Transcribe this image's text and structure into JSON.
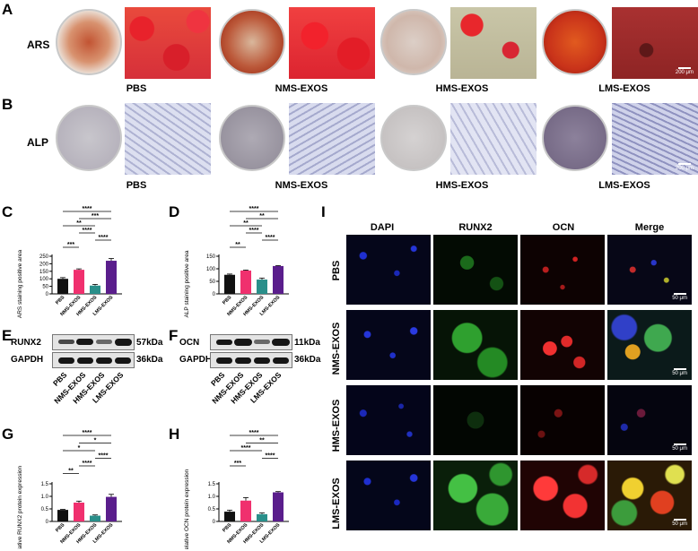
{
  "panels": {
    "A": "A",
    "B": "B",
    "C": "C",
    "D": "D",
    "E": "E",
    "F": "F",
    "G": "G",
    "H": "H",
    "I": "I"
  },
  "groups": [
    "PBS",
    "NMS-EXOS",
    "HMS-EXOS",
    "LMS-EXOS"
  ],
  "stain_rows": {
    "ars": "ARS",
    "alp": "ALP"
  },
  "scale_bar": "200 μm",
  "colors": {
    "PBS": "#111111",
    "NMS-EXOS": "#f0306e",
    "HMS-EXOS": "#2a8f8a",
    "LMS-EXOS": "#5a1e8c"
  },
  "western": {
    "runx2": {
      "target": "RUNX2",
      "target_kda": "57kDa",
      "control": "GAPDH",
      "control_kda": "36kDa"
    },
    "ocn": {
      "target": "OCN",
      "target_kda": "11kDa",
      "control": "GAPDH",
      "control_kda": "36kDa"
    }
  },
  "if_panel": {
    "columns": [
      "DAPI",
      "RUNX2",
      "OCN",
      "Merge"
    ],
    "rows": [
      "PBS",
      "NMS-EXOS",
      "HMS-EXOS",
      "LMS-EXOS"
    ],
    "scale": "50 μm"
  },
  "chart_data": [
    {
      "panel": "C",
      "type": "bar",
      "categories": [
        "PBS",
        "NMS-EXOS",
        "HMS-EXOS",
        "LMS-EXOS"
      ],
      "values": [
        100,
        160,
        55,
        220
      ],
      "errors": [
        8,
        6,
        8,
        15
      ],
      "ylabel": "ARS staining positive area",
      "ylim": [
        0,
        250
      ],
      "yticks": [
        0,
        50,
        100,
        150,
        200,
        250
      ],
      "significance": [
        {
          "from": 0,
          "to": 3,
          "label": "****"
        },
        {
          "from": 1,
          "to": 3,
          "label": "***"
        },
        {
          "from": 0,
          "to": 2,
          "label": "**"
        },
        {
          "from": 1,
          "to": 2,
          "label": "****"
        },
        {
          "from": 2,
          "to": 3,
          "label": "****"
        },
        {
          "from": 0,
          "to": 1,
          "label": "***"
        }
      ]
    },
    {
      "panel": "D",
      "type": "bar",
      "categories": [
        "PBS",
        "NMS-EXOS",
        "HMS-EXOS",
        "LMS-EXOS"
      ],
      "values": [
        76,
        93,
        57,
        111
      ],
      "errors": [
        3,
        2,
        6,
        2
      ],
      "ylabel": "ALP staining positive area",
      "ylim": [
        0,
        150
      ],
      "yticks": [
        0,
        50,
        100,
        150
      ],
      "significance": [
        {
          "from": 0,
          "to": 3,
          "label": "****"
        },
        {
          "from": 1,
          "to": 3,
          "label": "**"
        },
        {
          "from": 0,
          "to": 2,
          "label": "**"
        },
        {
          "from": 1,
          "to": 2,
          "label": "****"
        },
        {
          "from": 2,
          "to": 3,
          "label": "****"
        },
        {
          "from": 0,
          "to": 1,
          "label": "**"
        }
      ]
    },
    {
      "panel": "G",
      "type": "bar",
      "categories": [
        "PBS",
        "NMS-EXOS",
        "HMS-EXOS",
        "LMS-EXOS"
      ],
      "values": [
        0.46,
        0.75,
        0.23,
        0.98
      ],
      "errors": [
        0.02,
        0.06,
        0.03,
        0.1
      ],
      "ylabel": "Relative RUNX2 protein expression",
      "ylim": [
        0,
        1.5
      ],
      "yticks": [
        0,
        0.5,
        1.0,
        1.5
      ],
      "significance": [
        {
          "from": 0,
          "to": 3,
          "label": "****"
        },
        {
          "from": 1,
          "to": 3,
          "label": "*"
        },
        {
          "from": 0,
          "to": 2,
          "label": "*"
        },
        {
          "from": 2,
          "to": 3,
          "label": "****"
        },
        {
          "from": 1,
          "to": 2,
          "label": "****"
        },
        {
          "from": 0,
          "to": 1,
          "label": "**"
        }
      ]
    },
    {
      "panel": "H",
      "type": "bar",
      "categories": [
        "PBS",
        "NMS-EXOS",
        "HMS-EXOS",
        "LMS-EXOS"
      ],
      "values": [
        0.39,
        0.83,
        0.29,
        1.16
      ],
      "errors": [
        0.06,
        0.12,
        0.05,
        0.03
      ],
      "ylabel": "Relative OCN protein expression",
      "ylim": [
        0,
        1.5
      ],
      "yticks": [
        0,
        0.5,
        1.0,
        1.5
      ],
      "significance": [
        {
          "from": 0,
          "to": 3,
          "label": "****"
        },
        {
          "from": 1,
          "to": 3,
          "label": "**"
        },
        {
          "from": 0,
          "to": 2,
          "label": "****"
        },
        {
          "from": 2,
          "to": 3,
          "label": "****"
        },
        {
          "from": 0,
          "to": 1,
          "label": "***"
        }
      ]
    }
  ]
}
